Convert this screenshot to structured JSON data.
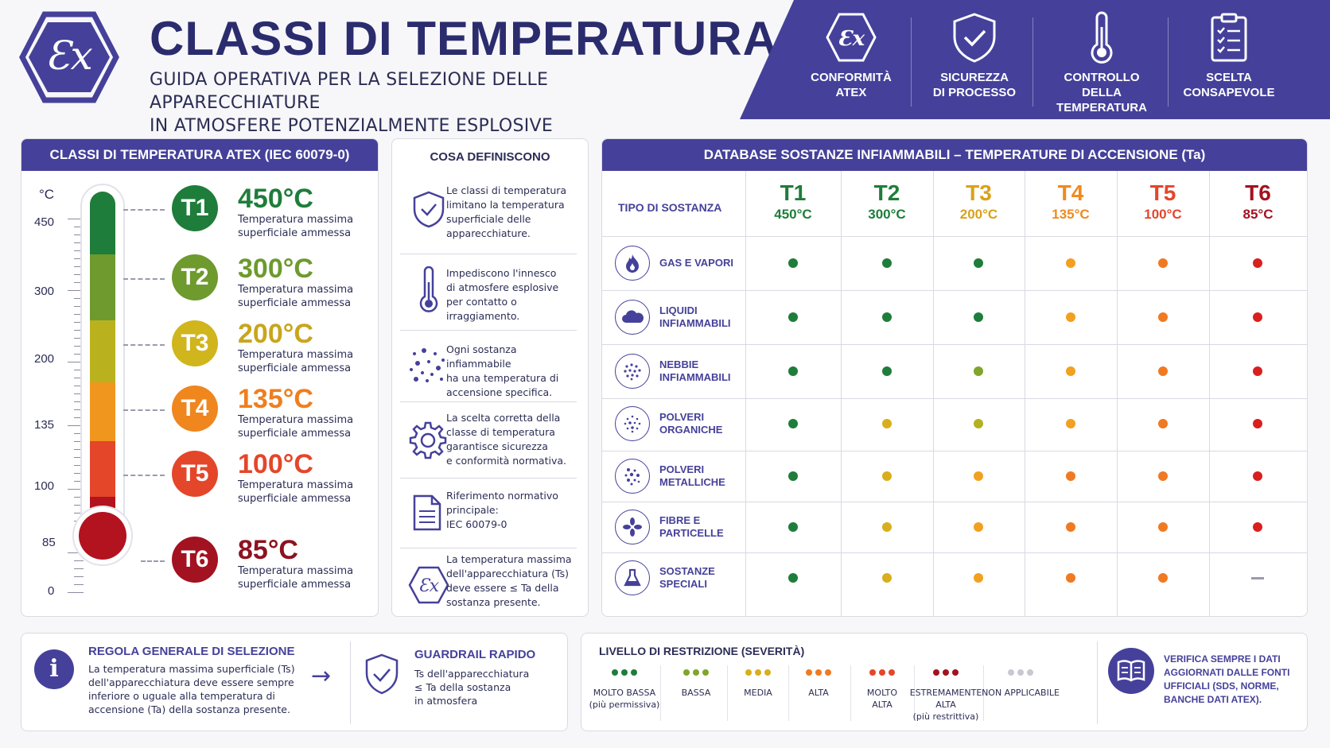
{
  "header": {
    "logo_text": "Ɛx",
    "title": "CLASSI DI TEMPERATURA ATEX",
    "subtitle_line1": "GUIDA OPERATIVA PER LA SELEZIONE DELLE APPARECCHIATURE",
    "subtitle_line2": "IN ATMOSFERE POTENZIALMENTE ESPLOSIVE"
  },
  "banner": [
    {
      "icon": "ex-hexagon-icon",
      "line1": "CONFORMITÀ",
      "line2": "ATEX"
    },
    {
      "icon": "shield-check-icon",
      "line1": "SICUREZZA",
      "line2": "DI PROCESSO"
    },
    {
      "icon": "thermometer-icon",
      "line1": "CONTROLLO",
      "line2": "DELLA TEMPERATURA"
    },
    {
      "icon": "clipboard-checklist-icon",
      "line1": "SCELTA",
      "line2": "CONSAPEVOLE"
    }
  ],
  "classes_panel": {
    "title": "CLASSI DI TEMPERATURA ATEX (IEC 60079-0)",
    "unit": "°C",
    "scale": [
      "450",
      "300",
      "200",
      "135",
      "100",
      "85",
      "0"
    ],
    "classes": [
      {
        "code": "T1",
        "temp": "450°C",
        "desc1": "Temperatura massima",
        "desc2": "superficiale ammessa",
        "color": "#1e7d3a",
        "text_color": "#1e7d3a"
      },
      {
        "code": "T2",
        "temp": "300°C",
        "desc1": "Temperatura massima",
        "desc2": "superficiale ammessa",
        "color": "#6e9a2e",
        "text_color": "#6e9a2e"
      },
      {
        "code": "T3",
        "temp": "200°C",
        "desc1": "Temperatura massima",
        "desc2": "superficiale ammessa",
        "color": "#c9b41c",
        "text_color": "#c9a51c"
      },
      {
        "code": "T4",
        "temp": "135°C",
        "desc1": "Temperatura massima",
        "desc2": "superficiale ammessa",
        "color": "#f0861e",
        "text_color": "#ef7e1e"
      },
      {
        "code": "T5",
        "temp": "100°C",
        "desc1": "Temperatura massima",
        "desc2": "superficiale ammessa",
        "color": "#e4462a",
        "text_color": "#e4462a"
      },
      {
        "code": "T6",
        "temp": "85°C",
        "desc1": "Temperatura massima",
        "desc2": "superficiale ammessa",
        "color": "#a31220",
        "text_color": "#8c1320"
      }
    ]
  },
  "definitions": {
    "title": "COSA DEFINISCONO",
    "items": [
      {
        "icon": "shield-check-icon",
        "lines": [
          "Le classi di temperatura",
          "limitano la temperatura",
          "superficiale delle",
          "apparecchiature."
        ]
      },
      {
        "icon": "thermometer-icon",
        "lines": [
          "Impediscono l'innesco",
          "di atmosfere esplosive",
          "per contatto o irraggiamento."
        ]
      },
      {
        "icon": "particles-icon",
        "lines": [
          "Ogni sostanza infiammabile",
          "ha una temperatura di",
          "accensione specifica."
        ]
      },
      {
        "icon": "gear-icon",
        "lines": [
          "La scelta corretta della",
          "classe di temperatura",
          "garantisce sicurezza",
          "e conformità normativa."
        ]
      },
      {
        "icon": "document-icon",
        "lines": [
          "Riferimento normativo",
          "principale:",
          "IEC 60079-0"
        ]
      },
      {
        "icon": "ex-hexagon-icon",
        "lines": [
          "La temperatura massima",
          "dell'apparecchiatura (Ts)",
          "deve essere ≤ Ta della",
          "sostanza presente."
        ]
      }
    ]
  },
  "database": {
    "title": "DATABASE SOSTANZE INFIAMMABILI – TEMPERATURE DI ACCENSIONE (Ta)",
    "col_header": "TIPO DI SOSTANZA",
    "columns": [
      {
        "code": "T1",
        "temp": "450°C",
        "color": "#1e7d3a"
      },
      {
        "code": "T2",
        "temp": "300°C",
        "color": "#1e7d3a"
      },
      {
        "code": "T3",
        "temp": "200°C",
        "color": "#d8a21a"
      },
      {
        "code": "T4",
        "temp": "135°C",
        "color": "#ef8a1e"
      },
      {
        "code": "T5",
        "temp": "100°C",
        "color": "#e4462a"
      },
      {
        "code": "T6",
        "temp": "85°C",
        "color": "#a31220"
      }
    ],
    "rows": [
      {
        "icon": "flame-icon",
        "line1": "GAS E VAPORI",
        "line2": "",
        "levels": [
          "molto_bassa",
          "molto_bassa",
          "molto_bassa",
          "media_alta",
          "alta",
          "molto_alta"
        ]
      },
      {
        "icon": "liquid-icon",
        "line1": "LIQUIDI",
        "line2": "INFIAMMABILI",
        "levels": [
          "molto_bassa",
          "molto_bassa",
          "molto_bassa",
          "media_alta",
          "alta",
          "molto_alta"
        ]
      },
      {
        "icon": "mist-icon",
        "line1": "NEBBIE",
        "line2": "INFIAMMABILI",
        "levels": [
          "molto_bassa",
          "molto_bassa",
          "bassa",
          "media_alta",
          "alta",
          "molto_alta"
        ]
      },
      {
        "icon": "organic-dust-icon",
        "line1": "POLVERI",
        "line2": "ORGANICHE",
        "levels": [
          "molto_bassa",
          "media",
          "bassa_media",
          "media_alta",
          "alta",
          "molto_alta"
        ]
      },
      {
        "icon": "metal-dust-icon",
        "line1": "POLVERI",
        "line2": "METALLICHE",
        "levels": [
          "molto_bassa",
          "media",
          "media_alta",
          "alta",
          "alta",
          "molto_alta"
        ]
      },
      {
        "icon": "fibers-icon",
        "line1": "FIBRE E",
        "line2": "PARTICELLE",
        "levels": [
          "molto_bassa",
          "media",
          "media_alta",
          "alta",
          "alta",
          "molto_alta"
        ]
      },
      {
        "icon": "flask-icon",
        "line1": "SOSTANZE",
        "line2": "SPECIALI",
        "levels": [
          "molto_bassa",
          "media",
          "media_alta",
          "alta",
          "alta",
          "non_applicabile"
        ]
      }
    ],
    "level_colors": {
      "molto_bassa": "#1e7d3a",
      "bassa": "#7fa52a",
      "bassa_media": "#b5b01f",
      "media": "#d8ae1c",
      "media_alta": "#f2a020",
      "alta": "#f07a22",
      "molto_alta": "#d8201e",
      "non_applicabile": "#9a9ab0"
    }
  },
  "rule": {
    "icon": "info-icon",
    "title": "REGOLA GENERALE DI SELEZIONE",
    "lines": [
      "La temperatura massima superficiale (Ts)",
      "dell'apparecchiatura deve essere sempre",
      "inferiore o uguale alla temperatura di",
      "accensione (Ta) della sostanza presente."
    ],
    "arrow": "→"
  },
  "guardrail": {
    "icon": "shield-check-icon",
    "title": "GUARDRAIL RAPIDO",
    "lines": [
      "Ts dell'apparecchiatura",
      "≤ Ta della sostanza",
      "in atmosfera"
    ]
  },
  "severity": {
    "title": "LIVELLO DI RESTRIZIONE (SEVERITÀ)",
    "levels": [
      {
        "label1": "MOLTO BASSA",
        "label2": "(più permissiva)",
        "label3": "",
        "colors": [
          "#1e7d3a",
          "#1e7d3a",
          "#1e7d3a"
        ]
      },
      {
        "label1": "BASSA",
        "label2": "",
        "label3": "",
        "colors": [
          "#7fa52a",
          "#7fa52a",
          "#7fa52a"
        ]
      },
      {
        "label1": "MEDIA",
        "label2": "",
        "label3": "",
        "colors": [
          "#d8ae1c",
          "#d8ae1c",
          "#d8ae1c"
        ]
      },
      {
        "label1": "ALTA",
        "label2": "",
        "label3": "",
        "colors": [
          "#f07a22",
          "#f07a22",
          "#f07a22"
        ]
      },
      {
        "label1": "MOLTO",
        "label2": "ALTA",
        "label3": "",
        "colors": [
          "#e4462a",
          "#e4462a",
          "#e4462a"
        ]
      },
      {
        "label1": "ESTREMAMENTE",
        "label2": "ALTA",
        "label3": "(più restrittiva)",
        "colors": [
          "#a31220",
          "#a31220",
          "#a31220"
        ]
      },
      {
        "label1": "NON APPLICABILE",
        "label2": "",
        "label3": "",
        "colors": [
          "#c8c8d2",
          "#c8c8d2",
          "#c8c8d2"
        ]
      }
    ]
  },
  "verify": {
    "icon": "book-icon",
    "lines": [
      "VERIFICA SEMPRE I DATI",
      "AGGIORNATI DALLE FONTI",
      "UFFICIALI (SDS, NORME,",
      "BANCHE DATI ATEX)."
    ]
  }
}
